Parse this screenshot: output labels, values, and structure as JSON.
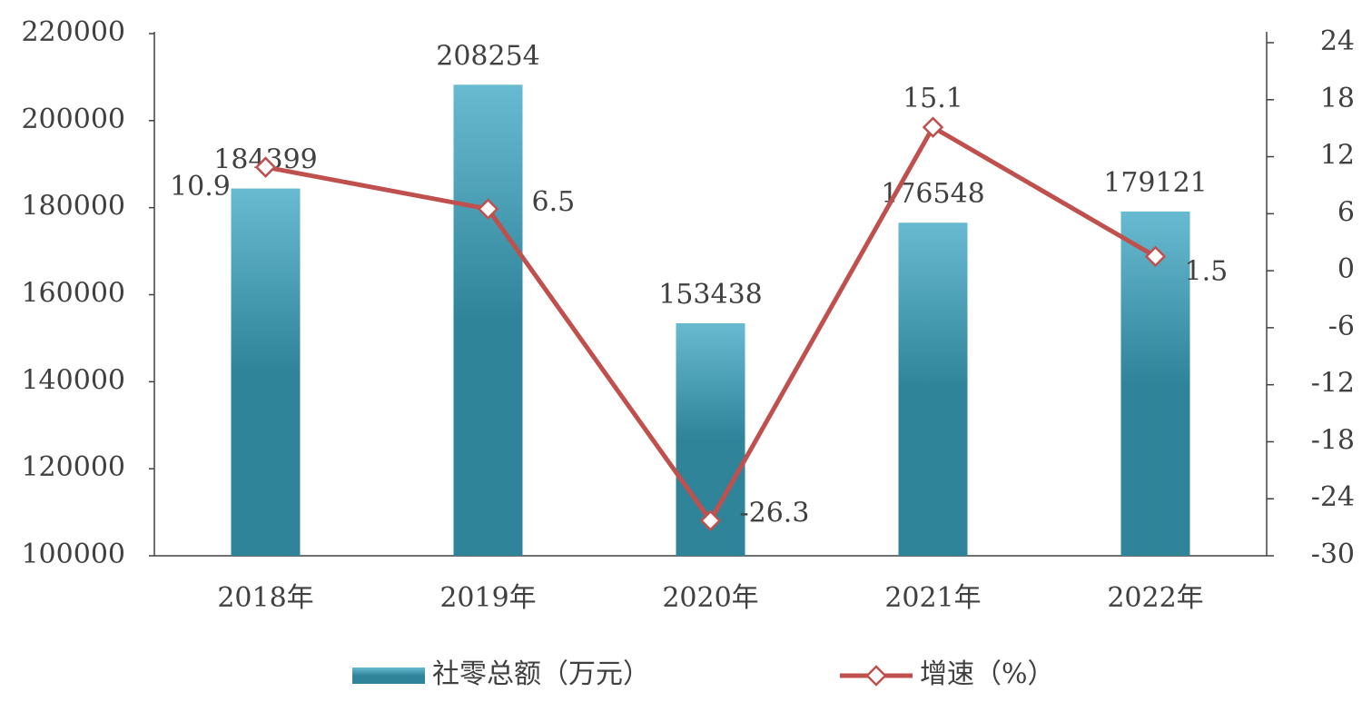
{
  "chart_data": {
    "type": "bar-line",
    "categories": [
      "2018年",
      "2019年",
      "2020年",
      "2021年",
      "2022年"
    ],
    "series": [
      {
        "name": "社零总额（万元）",
        "type": "bar",
        "color": "#2f8499",
        "values": [
          184399,
          208254,
          153438,
          176548,
          179121
        ]
      },
      {
        "name": "增速（%）",
        "type": "line",
        "axis": "y2",
        "color": "#c0504d",
        "values": [
          10.9,
          6.5,
          -26.3,
          15.1,
          1.5
        ]
      }
    ],
    "ylim": [
      100000,
      220000
    ],
    "yticks": [
      100000,
      120000,
      140000,
      160000,
      180000,
      200000,
      220000
    ],
    "y2lim": [
      -30,
      24
    ],
    "y2ticks": [
      -30,
      -24,
      -18,
      -12,
      -6,
      0,
      6,
      12,
      18,
      24
    ],
    "legend": "bottom"
  }
}
